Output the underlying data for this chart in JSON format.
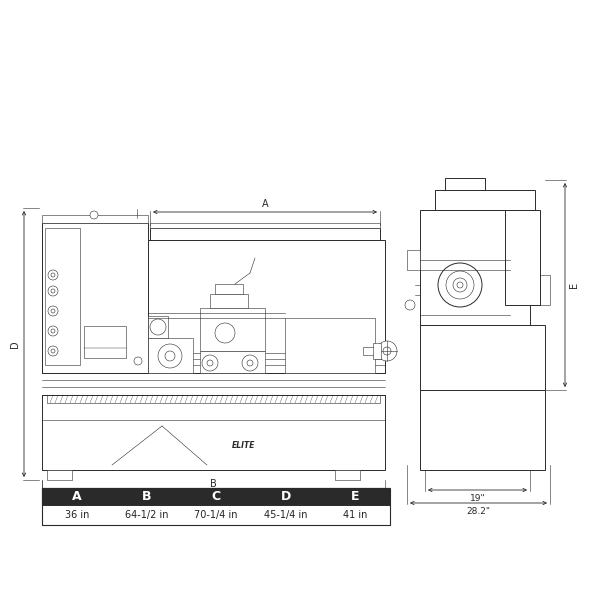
{
  "bg_color": "#ffffff",
  "lc": "#2a2a2a",
  "lw_main": 0.7,
  "lw_thin": 0.4,
  "table_bg": "#2a2a2a",
  "table_text": "#ffffff",
  "dim_labels": [
    "A",
    "B",
    "C",
    "D",
    "E"
  ],
  "dim_values": [
    "36 in",
    "64-1/2 in",
    "70-1/4 in",
    "45-1/4 in",
    "41 in"
  ],
  "side_dim_19": "19\"",
  "side_dim_282": "28.2\"",
  "brand": "ELITE"
}
